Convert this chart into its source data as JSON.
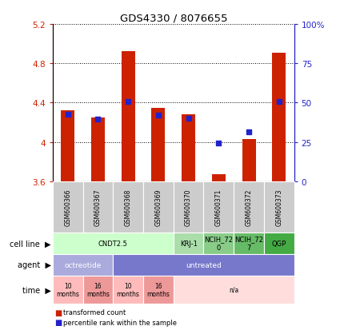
{
  "title": "GDS4330 / 8076655",
  "samples": [
    "GSM600366",
    "GSM600367",
    "GSM600368",
    "GSM600369",
    "GSM600370",
    "GSM600371",
    "GSM600372",
    "GSM600373"
  ],
  "red_values": [
    4.32,
    4.25,
    4.92,
    4.35,
    4.28,
    3.67,
    4.03,
    4.91
  ],
  "blue_values": [
    4.28,
    4.23,
    4.41,
    4.27,
    4.24,
    3.99,
    4.1,
    4.41
  ],
  "ylim": [
    3.6,
    5.2
  ],
  "yticks_left": [
    3.6,
    4.0,
    4.4,
    4.8,
    5.2
  ],
  "yticks_right": [
    0,
    25,
    50,
    75,
    100
  ],
  "ytick_labels_left": [
    "3.6",
    "4",
    "4.4",
    "4.8",
    "5.2"
  ],
  "ytick_labels_right": [
    "0",
    "25",
    "50",
    "75",
    "100%"
  ],
  "bar_color": "#cc2200",
  "dot_color": "#2222cc",
  "bar_width": 0.45,
  "cell_line_groups": [
    {
      "label": "CNDT2.5",
      "start": 0,
      "end": 4,
      "color": "#ccffcc"
    },
    {
      "label": "KRJ-1",
      "start": 4,
      "end": 5,
      "color": "#aaddaa"
    },
    {
      "label": "NCIH_72\n0",
      "start": 5,
      "end": 6,
      "color": "#88cc88"
    },
    {
      "label": "NCIH_72\n7",
      "start": 6,
      "end": 7,
      "color": "#66bb66"
    },
    {
      "label": "QGP",
      "start": 7,
      "end": 8,
      "color": "#44aa44"
    }
  ],
  "agent_groups": [
    {
      "label": "octreotide",
      "start": 0,
      "end": 2,
      "color": "#aaaadd"
    },
    {
      "label": "untreated",
      "start": 2,
      "end": 8,
      "color": "#7777cc"
    }
  ],
  "time_groups": [
    {
      "label": "10\nmonths",
      "start": 0,
      "end": 1,
      "color": "#ffbbbb"
    },
    {
      "label": "16\nmonths",
      "start": 1,
      "end": 2,
      "color": "#ee9999"
    },
    {
      "label": "10\nmonths",
      "start": 2,
      "end": 3,
      "color": "#ffbbbb"
    },
    {
      "label": "16\nmonths",
      "start": 3,
      "end": 4,
      "color": "#ee9999"
    },
    {
      "label": "n/a",
      "start": 4,
      "end": 8,
      "color": "#ffdddd"
    }
  ]
}
